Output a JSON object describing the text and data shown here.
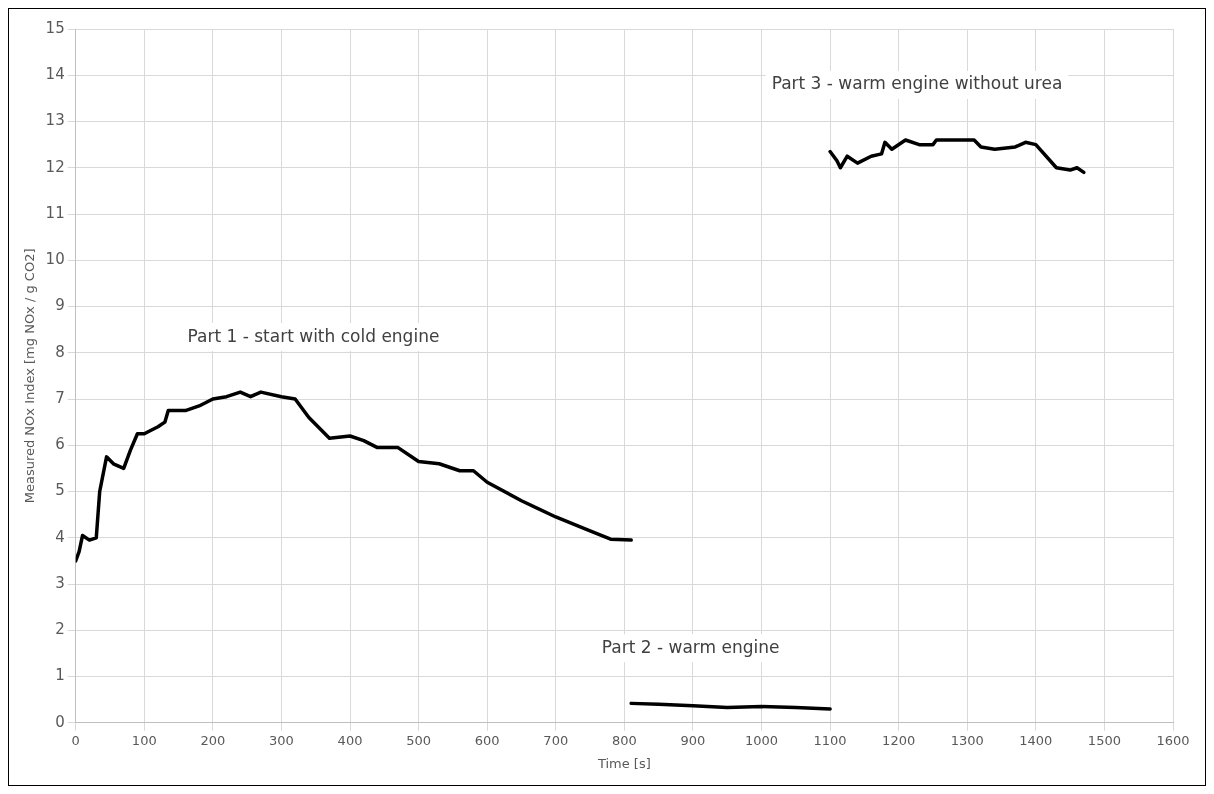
{
  "chart_data": {
    "type": "line",
    "xlabel": "Time [s]",
    "ylabel": "Measured NOx Index [mg NOx / g CO2]",
    "xlim": [
      0,
      1600
    ],
    "xticks": [
      0,
      100,
      200,
      300,
      400,
      500,
      600,
      700,
      800,
      900,
      1000,
      1100,
      1200,
      1300,
      1400,
      1500,
      1600
    ],
    "ylim": [
      0,
      15
    ],
    "yticks": [
      0,
      1,
      2,
      3,
      4,
      5,
      6,
      7,
      8,
      9,
      10,
      11,
      12,
      13,
      14,
      15
    ],
    "grid": true,
    "legend": false,
    "marker": "none",
    "line_style": "solid",
    "annotations": [
      "Part 1 - start with cold engine",
      "Part 2 - warm engine",
      "Part 3 - warm engine without urea"
    ],
    "series": [
      {
        "color": "#000000",
        "x": [
          0,
          5,
          10,
          20,
          30,
          35,
          45,
          55,
          70,
          80,
          90,
          100,
          120,
          130,
          135,
          160,
          180,
          200,
          220,
          240,
          255,
          270,
          300,
          320,
          340,
          370,
          400,
          420,
          440,
          470,
          500,
          530,
          560,
          580,
          600,
          650,
          700,
          750,
          780,
          810
        ],
        "values": [
          3.5,
          3.7,
          4.05,
          3.95,
          4.0,
          5.0,
          5.75,
          5.6,
          5.5,
          5.9,
          6.25,
          6.25,
          6.4,
          6.5,
          6.75,
          6.75,
          6.85,
          7.0,
          7.05,
          7.15,
          7.05,
          7.15,
          7.05,
          7.0,
          6.6,
          6.15,
          6.2,
          6.1,
          5.95,
          5.95,
          5.65,
          5.6,
          5.45,
          5.45,
          5.2,
          4.8,
          4.45,
          4.15,
          3.97,
          3.95
        ]
      },
      {
        "color": "#000000",
        "x": [
          810,
          850,
          900,
          950,
          1000,
          1050,
          1100
        ],
        "values": [
          0.42,
          0.4,
          0.37,
          0.33,
          0.35,
          0.33,
          0.3
        ]
      },
      {
        "color": "#000000",
        "x": [
          1100,
          1110,
          1115,
          1125,
          1140,
          1160,
          1175,
          1180,
          1190,
          1210,
          1230,
          1250,
          1255,
          1310,
          1320,
          1340,
          1370,
          1385,
          1400,
          1430,
          1450,
          1460,
          1470
        ],
        "values": [
          12.35,
          12.15,
          12.0,
          12.25,
          12.1,
          12.25,
          12.3,
          12.55,
          12.4,
          12.6,
          12.5,
          12.5,
          12.6,
          12.6,
          12.45,
          12.4,
          12.45,
          12.55,
          12.5,
          12.0,
          11.95,
          12.0,
          11.9
        ]
      }
    ]
  }
}
